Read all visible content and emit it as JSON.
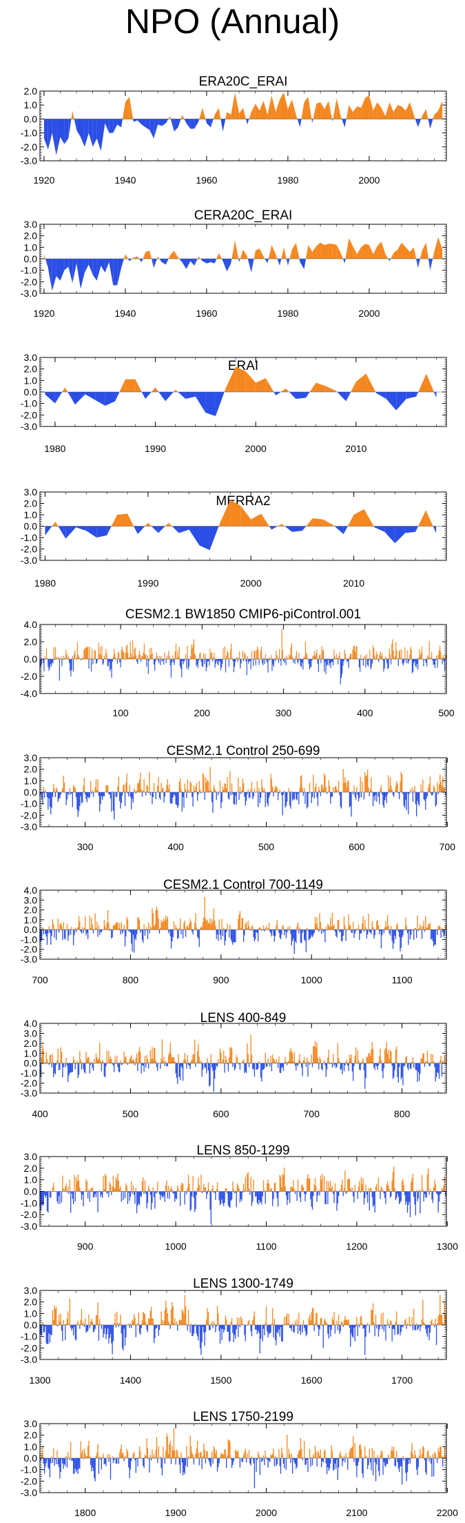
{
  "page": {
    "title": "NPO (Annual)"
  },
  "colors": {
    "positive": "#f5871f",
    "negative": "#2b4ee6",
    "axis": "#000000"
  },
  "chart_data": [
    {
      "type": "area",
      "title": "ERA20C_ERAI",
      "x_range": [
        1919,
        2019
      ],
      "ylim": [
        -3.0,
        2.0
      ],
      "yticks": [
        "2.0",
        "1.0",
        "0.0",
        "-1.0",
        "-2.0",
        "-3.0"
      ],
      "xticks": [
        1920,
        1940,
        1960,
        1980,
        2000
      ],
      "x": [
        1920,
        1921,
        1922,
        1923,
        1924,
        1925,
        1926,
        1927,
        1928,
        1929,
        1930,
        1931,
        1932,
        1933,
        1934,
        1935,
        1936,
        1937,
        1938,
        1939,
        1940,
        1941,
        1942,
        1943,
        1944,
        1945,
        1946,
        1947,
        1948,
        1949,
        1950,
        1951,
        1952,
        1953,
        1954,
        1955,
        1956,
        1957,
        1958,
        1959,
        1960,
        1961,
        1962,
        1963,
        1964,
        1965,
        1966,
        1967,
        1968,
        1969,
        1970,
        1971,
        1972,
        1973,
        1974,
        1975,
        1976,
        1977,
        1978,
        1979,
        1980,
        1981,
        1982,
        1983,
        1984,
        1985,
        1986,
        1987,
        1988,
        1989,
        1990,
        1991,
        1992,
        1993,
        1994,
        1995,
        1996,
        1997,
        1998,
        1999,
        2000,
        2001,
        2002,
        2003,
        2004,
        2005,
        2006,
        2007,
        2008,
        2009,
        2010,
        2011,
        2012,
        2013,
        2014,
        2015,
        2016,
        2017,
        2018
      ],
      "values": [
        -1.4,
        -2.2,
        -1.0,
        -2.6,
        -1.3,
        -1.8,
        -1.4,
        0.6,
        -0.8,
        -1.3,
        -2.0,
        -1.0,
        -2.0,
        -1.4,
        -2.3,
        -0.3,
        -1.0,
        -1.0,
        -0.4,
        -0.6,
        1.2,
        1.6,
        -0.2,
        -0.1,
        -0.4,
        -0.6,
        -0.8,
        -1.4,
        -0.4,
        -0.5,
        -0.3,
        0.2,
        -0.9,
        -0.6,
        0.3,
        -0.3,
        -0.7,
        -0.7,
        -0.2,
        0.8,
        -0.3,
        -0.6,
        0.3,
        0.8,
        -0.9,
        0.5,
        0.3,
        1.9,
        0.4,
        0.8,
        -0.4,
        0.5,
        1.1,
        0.6,
        1.3,
        0.3,
        1.7,
        0.5,
        1.4,
        1.9,
        0.7,
        1.4,
        0.3,
        -0.6,
        1.2,
        1.6,
        -0.3,
        1.1,
        1.2,
        0.7,
        1.3,
        -0.2,
        1.5,
        0.2,
        -0.6,
        1.0,
        0.5,
        0.9,
        0.8,
        1.5,
        1.7,
        0.6,
        1.2,
        0.8,
        0.2,
        1.2,
        0.5,
        1.0,
        0.9,
        0.6,
        1.2,
        0.3,
        -0.6,
        0.2,
        0.7,
        -0.7,
        0.3,
        0.6,
        1.3
      ]
    },
    {
      "type": "area",
      "title": "CERA20C_ERAI",
      "x_range": [
        1919,
        2019
      ],
      "ylim": [
        -3.0,
        3.0
      ],
      "yticks": [
        "3.0",
        "2.0",
        "1.0",
        "0.0",
        "-1.0",
        "-2.0",
        "-3.0"
      ],
      "xticks": [
        1920,
        1940,
        1960,
        1980,
        2000
      ],
      "x": [
        1920,
        1921,
        1922,
        1923,
        1924,
        1925,
        1926,
        1927,
        1928,
        1929,
        1930,
        1931,
        1932,
        1933,
        1934,
        1935,
        1936,
        1937,
        1938,
        1939,
        1940,
        1941,
        1942,
        1943,
        1944,
        1945,
        1946,
        1947,
        1948,
        1949,
        1950,
        1951,
        1952,
        1953,
        1954,
        1955,
        1956,
        1957,
        1958,
        1959,
        1960,
        1961,
        1962,
        1963,
        1964,
        1965,
        1966,
        1967,
        1968,
        1969,
        1970,
        1971,
        1972,
        1973,
        1974,
        1975,
        1976,
        1977,
        1978,
        1979,
        1980,
        1981,
        1982,
        1983,
        1984,
        1985,
        1986,
        1987,
        1988,
        1989,
        1990,
        1991,
        1992,
        1993,
        1994,
        1995,
        1996,
        1997,
        1998,
        1999,
        2000,
        2001,
        2002,
        2003,
        2004,
        2005,
        2006,
        2007,
        2008,
        2009,
        2010,
        2011,
        2012,
        2013,
        2014,
        2015,
        2016,
        2017,
        2018
      ],
      "values": [
        0.4,
        -0.8,
        -2.8,
        -1.5,
        -1.9,
        -1.0,
        -0.7,
        -2.1,
        -0.4,
        -2.6,
        -1.2,
        -0.5,
        -1.4,
        -1.9,
        -0.6,
        -1.2,
        -0.3,
        -2.3,
        -2.3,
        -0.8,
        0.4,
        -0.2,
        0.1,
        0.2,
        -0.3,
        0.6,
        0.7,
        -0.8,
        0.2,
        -0.3,
        -0.5,
        0.3,
        0.7,
        0.1,
        -0.3,
        -0.9,
        -0.2,
        -0.6,
        0.2,
        -0.2,
        -0.4,
        -0.3,
        -0.4,
        0.5,
        -0.2,
        -1.1,
        -0.4,
        1.6,
        -0.3,
        0.8,
        0.2,
        -1.2,
        0.7,
        0.9,
        0.2,
        -0.4,
        1.2,
        0.4,
        -0.6,
        1.0,
        -0.6,
        0.8,
        1.4,
        -0.3,
        -0.9,
        1.2,
        0.6,
        1.1,
        1.4,
        1.2,
        1.3,
        1.3,
        1.2,
        0.5,
        -0.4,
        1.8,
        1.1,
        0.4,
        1.0,
        1.3,
        1.2,
        0.4,
        1.1,
        1.5,
        0.4,
        -0.2,
        0.5,
        0.8,
        1.4,
        1.0,
        0.6,
        1.0,
        -0.8,
        0.7,
        1.4,
        -1.0,
        0.6,
        1.9,
        0.8
      ]
    },
    {
      "type": "area",
      "title": "ERAI",
      "x_range": [
        1978.5,
        2019
      ],
      "ylim": [
        -3.0,
        3.0
      ],
      "yticks": [
        "3.0",
        "2.0",
        "1.0",
        "0.0",
        "-1.0",
        "-2.0",
        "-3.0"
      ],
      "xticks": [
        1980,
        1990,
        2000,
        2010
      ],
      "x": [
        1979,
        1980,
        1981,
        1982,
        1983,
        1984,
        1985,
        1986,
        1987,
        1988,
        1989,
        1990,
        1991,
        1992,
        1993,
        1994,
        1995,
        1996,
        1997,
        1998,
        1999,
        2000,
        2001,
        2002,
        2003,
        2004,
        2005,
        2006,
        2007,
        2008,
        2009,
        2010,
        2011,
        2012,
        2013,
        2014,
        2015,
        2016,
        2017,
        2018
      ],
      "values": [
        -0.2,
        -1.0,
        0.4,
        -1.1,
        -0.2,
        -0.7,
        -1.2,
        -0.8,
        1.1,
        1.1,
        -0.6,
        0.4,
        -0.8,
        0.2,
        -0.6,
        -0.4,
        -1.8,
        -2.1,
        0.3,
        2.2,
        1.8,
        0.8,
        1.2,
        -0.3,
        0.3,
        -0.6,
        -0.5,
        0.8,
        0.5,
        0.1,
        -0.8,
        0.9,
        1.6,
        -0.1,
        -0.6,
        -1.6,
        -0.6,
        -0.4,
        1.6,
        -0.5
      ]
    },
    {
      "type": "area",
      "title": "MERRA2",
      "x_range": [
        1979.5,
        2019
      ],
      "ylim": [
        -3.0,
        3.0
      ],
      "yticks": [
        "3.0",
        "2.0",
        "1.0",
        "0.0",
        "-1.0",
        "-2.0",
        "-3.0"
      ],
      "xticks": [
        1980,
        1990,
        2000,
        2010
      ],
      "x": [
        1980,
        1981,
        1982,
        1983,
        1984,
        1985,
        1986,
        1987,
        1988,
        1989,
        1990,
        1991,
        1992,
        1993,
        1994,
        1995,
        1996,
        1997,
        1998,
        1999,
        2000,
        2001,
        2002,
        2003,
        2004,
        2005,
        2006,
        2007,
        2008,
        2009,
        2010,
        2011,
        2012,
        2013,
        2014,
        2015,
        2016,
        2017,
        2018
      ],
      "values": [
        -0.8,
        0.4,
        -1.1,
        -0.1,
        -0.4,
        -1.0,
        -0.8,
        1.0,
        1.1,
        -0.7,
        0.3,
        -0.6,
        0.3,
        -0.6,
        -0.3,
        -1.7,
        -2.1,
        0.3,
        2.3,
        1.8,
        0.6,
        1.1,
        -0.3,
        0.2,
        -0.5,
        -0.4,
        0.7,
        0.6,
        0.1,
        -0.7,
        1.0,
        1.5,
        -0.1,
        -0.5,
        -1.5,
        -0.6,
        -0.5,
        1.4,
        -0.6
      ]
    },
    {
      "type": "bar",
      "title": "CESM2.1 BW1850 CMIP6-piControl.001",
      "x_range": [
        1,
        500
      ],
      "ylim": [
        -4.0,
        4.0
      ],
      "yticks": [
        "4.0",
        "2.0",
        "0.0",
        "-2.0",
        "-4.0"
      ],
      "xticks": [
        100,
        200,
        300,
        400,
        500
      ],
      "generator": {
        "seed": 11,
        "start": 1,
        "count": 500,
        "amplitude": 0.85,
        "max": 3.5
      }
    },
    {
      "type": "bar",
      "title": "CESM2.1 Control 250-699",
      "x_range": [
        250,
        699
      ],
      "ylim": [
        -3.0,
        3.0
      ],
      "yticks": [
        "3.0",
        "2.0",
        "1.0",
        "0.0",
        "-1.0",
        "-2.0",
        "-3.0"
      ],
      "xticks": [
        300,
        400,
        500,
        600,
        700
      ],
      "generator": {
        "seed": 23,
        "start": 250,
        "count": 450,
        "amplitude": 0.8,
        "max": 2.6
      }
    },
    {
      "type": "bar",
      "title": "CESM2.1 Control 700-1149",
      "x_range": [
        700,
        1149
      ],
      "ylim": [
        -3.0,
        4.0
      ],
      "yticks": [
        "4.0",
        "3.0",
        "2.0",
        "1.0",
        "0.0",
        "-1.0",
        "-2.0",
        "-3.0"
      ],
      "xticks": [
        700,
        800,
        900,
        1000,
        1100
      ],
      "generator": {
        "seed": 37,
        "start": 700,
        "count": 450,
        "amplitude": 0.8,
        "max": 3.3
      }
    },
    {
      "type": "bar",
      "title": "LENS 400-849",
      "x_range": [
        400,
        849
      ],
      "ylim": [
        -3.0,
        4.0
      ],
      "yticks": [
        "4.0",
        "3.0",
        "2.0",
        "1.0",
        "0.0",
        "-1.0",
        "-2.0",
        "-3.0"
      ],
      "xticks": [
        400,
        500,
        600,
        700,
        800
      ],
      "generator": {
        "seed": 41,
        "start": 400,
        "count": 450,
        "amplitude": 0.8,
        "max": 3.2
      }
    },
    {
      "type": "bar",
      "title": "LENS 850-1299",
      "x_range": [
        850,
        1299
      ],
      "ylim": [
        -3.0,
        3.0
      ],
      "yticks": [
        "3.0",
        "2.0",
        "1.0",
        "0.0",
        "-1.0",
        "-2.0",
        "-3.0"
      ],
      "xticks": [
        900,
        1000,
        1100,
        1200,
        1300
      ],
      "generator": {
        "seed": 53,
        "start": 850,
        "count": 450,
        "amplitude": 0.8,
        "max": 2.8
      }
    },
    {
      "type": "bar",
      "title": "LENS 1300-1749",
      "x_range": [
        1300,
        1749
      ],
      "ylim": [
        -3.0,
        3.0
      ],
      "yticks": [
        "3.0",
        "2.0",
        "1.0",
        "0.0",
        "-1.0",
        "-2.0",
        "-3.0"
      ],
      "xticks": [
        1300,
        1400,
        1500,
        1600,
        1700
      ],
      "generator": {
        "seed": 67,
        "start": 1300,
        "count": 450,
        "amplitude": 0.8,
        "max": 2.6
      }
    },
    {
      "type": "bar",
      "title": "LENS 1750-2199",
      "x_range": [
        1750,
        2199
      ],
      "ylim": [
        -3.0,
        3.0
      ],
      "yticks": [
        "3.0",
        "2.0",
        "1.0",
        "0.0",
        "-1.0",
        "-2.0",
        "-3.0"
      ],
      "xticks": [
        1800,
        1900,
        2000,
        2100,
        2200
      ],
      "generator": {
        "seed": 79,
        "start": 1750,
        "count": 450,
        "amplitude": 0.8,
        "max": 2.6
      }
    }
  ]
}
